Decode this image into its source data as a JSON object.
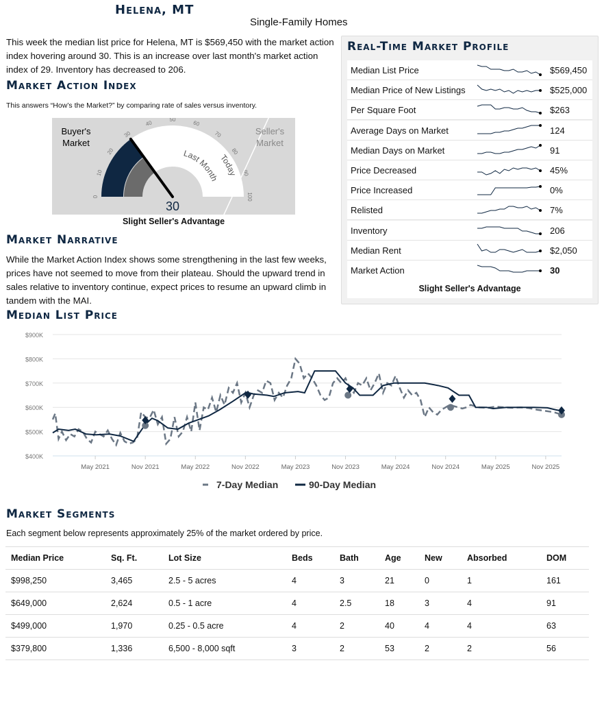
{
  "header": {
    "title": "Helena, MT",
    "subtitle": "Single-Family Homes"
  },
  "intro": "This week the median list price for Helena, MT is $569,450 with the market action index hovering around 30. This is an increase over last month's market action index of 29. Inventory has decreased to 206.",
  "mai": {
    "heading": "Market Action Index",
    "description": "This answers “How’s the Market?” by comparing rate of sales versus inventory.",
    "value": 30,
    "value_label": "30",
    "last_month": 29,
    "buyers": "Buyer's Market",
    "sellers": "Seller's Market",
    "last_month_label": "Last Month",
    "today_label": "Today",
    "ticks": [
      "0",
      "10",
      "20",
      "30",
      "40",
      "50",
      "60",
      "70",
      "80",
      "90",
      "100"
    ],
    "verdict": "Slight Seller's Advantage"
  },
  "narrative": {
    "heading": "Market Narrative",
    "text": "While the Market Action Index shows some strengthening in the last few weeks, prices have not seemed to move from their plateau. Should the upward trend in sales relative to inventory continue, expect prices to resume an upward climb in tandem with the MAI."
  },
  "profile": {
    "heading": "Real-Time Market Profile",
    "rows": [
      {
        "label": "Median List Price",
        "value": "$569,450",
        "spark": [
          8,
          7,
          7,
          5,
          5,
          5,
          4,
          4,
          5,
          3,
          3,
          4,
          2,
          3,
          1
        ]
      },
      {
        "label": "Median Price of New Listings",
        "value": "$525,000",
        "spark": [
          8,
          5,
          4,
          5,
          4,
          5,
          3,
          4,
          2,
          4,
          3,
          4,
          3,
          4,
          4
        ]
      },
      {
        "label": "Per Square Foot",
        "value": "$263",
        "spark": [
          7,
          8,
          8,
          8,
          5,
          5,
          6,
          6,
          5,
          5,
          6,
          4,
          3,
          3,
          2
        ]
      },
      {
        "label": "Average Days on Market",
        "value": "124",
        "spark": [
          2,
          2,
          2,
          2,
          3,
          3,
          4,
          4,
          5,
          6,
          6,
          7,
          8,
          8,
          8
        ]
      },
      {
        "label": "Median Days on Market",
        "value": "91",
        "spark": [
          2,
          2,
          3,
          3,
          2,
          2,
          3,
          3,
          4,
          5,
          5,
          6,
          7,
          6,
          8
        ]
      },
      {
        "label": "Price Decreased",
        "value": "45%",
        "spark": [
          3,
          3,
          1,
          2,
          4,
          2,
          5,
          4,
          6,
          5,
          6,
          6,
          5,
          6,
          4
        ]
      },
      {
        "label": "Price Increased",
        "value": "0%",
        "spark": [
          1,
          1,
          1,
          1,
          6,
          6,
          6,
          6,
          6,
          6,
          6,
          6,
          6.5,
          6.5,
          7
        ]
      },
      {
        "label": "Relisted",
        "value": "7%",
        "spark": [
          2,
          2,
          3,
          4,
          4,
          5,
          5,
          7,
          7,
          6,
          6,
          7,
          5,
          6,
          4
        ]
      },
      {
        "label": "Inventory",
        "value": "206",
        "spark": [
          6,
          6,
          7,
          7,
          7,
          7,
          6,
          6,
          6,
          6,
          4,
          4,
          3,
          2,
          2
        ]
      },
      {
        "label": "Median Rent",
        "value": "$2,050",
        "spark": [
          9,
          4,
          5,
          3,
          3,
          5,
          5,
          4,
          3,
          4,
          5,
          3,
          3,
          3,
          4
        ]
      },
      {
        "label": "Market Action",
        "value": "30",
        "bold": true,
        "spark": [
          8,
          7,
          7,
          7,
          6,
          4,
          4,
          4,
          3,
          3,
          3,
          4,
          4,
          4,
          4
        ]
      }
    ],
    "footer": "Slight Seller's Advantage"
  },
  "chart_title": "Median List Price",
  "chart_data": {
    "type": "line",
    "title": "Median List Price",
    "x_unit": "month index (0 = Jan 2021)",
    "ylabel": "",
    "xlabel": "",
    "ylim": [
      400,
      900
    ],
    "y_ticks": [
      {
        "v": 400,
        "label": "$400K"
      },
      {
        "v": 500,
        "label": "$500K"
      },
      {
        "v": 600,
        "label": "$600K"
      },
      {
        "v": 700,
        "label": "$700K"
      },
      {
        "v": 800,
        "label": "$800K"
      },
      {
        "v": 900,
        "label": "$900K"
      }
    ],
    "x_ticks": [
      {
        "t": 4,
        "label": "May 2021"
      },
      {
        "t": 10,
        "label": "Nov 2021"
      },
      {
        "t": 16,
        "label": "May 2022"
      },
      {
        "t": 22,
        "label": "Nov 2022"
      },
      {
        "t": 28,
        "label": "May 2023"
      },
      {
        "t": 34,
        "label": "Nov 2023"
      },
      {
        "t": 40,
        "label": "May 2024"
      },
      {
        "t": 46,
        "label": "Nov 2024"
      },
      {
        "t": 52,
        "label": "May 2025"
      },
      {
        "t": 58,
        "label": "Nov 2025"
      }
    ],
    "xlim": [
      -1.1,
      59.9
    ],
    "series": [
      {
        "name": "7-Day Median",
        "color": "#6b7785",
        "dashed": true,
        "t": [
          -1.1,
          -0.8,
          -0.4,
          0,
          0.5,
          1,
          1.5,
          2,
          2.5,
          3,
          3.5,
          4,
          4.5,
          5,
          5.5,
          6,
          6.5,
          7,
          7.5,
          8,
          8.5,
          9,
          9.5,
          10,
          10.5,
          11,
          11.5,
          12,
          12.5,
          13,
          13.5,
          14,
          14.5,
          15,
          15.5,
          16,
          16.5,
          17,
          17.5,
          18,
          18.5,
          19,
          19.5,
          20,
          20.5,
          21,
          21.5,
          22,
          22.5,
          23,
          23.5,
          24,
          24.5,
          25,
          25.5,
          26,
          26.5,
          27,
          27.5,
          28,
          28.5,
          29,
          29.5,
          30,
          30.5,
          31,
          31.5,
          32,
          32.5,
          33,
          33.5,
          34,
          34.5,
          35,
          35.5,
          36,
          36.5,
          37,
          37.5,
          38,
          38.5,
          39,
          39.5,
          40,
          40.5,
          41,
          41.5,
          42,
          42.5,
          43,
          43.5,
          44,
          44.5,
          45,
          45.5,
          46,
          46.5,
          47,
          47.5,
          48,
          48.5,
          49,
          50,
          51,
          52,
          53,
          54,
          55,
          56,
          57,
          58,
          59,
          59.9
        ],
        "values": [
          550,
          575,
          470,
          500,
          465,
          490,
          480,
          510,
          500,
          470,
          455,
          500,
          490,
          480,
          505,
          470,
          445,
          495,
          460,
          450,
          455,
          470,
          580,
          560,
          555,
          590,
          530,
          560,
          450,
          470,
          560,
          480,
          500,
          560,
          500,
          620,
          505,
          600,
          590,
          640,
          580,
          650,
          610,
          680,
          660,
          700,
          620,
          660,
          600,
          650,
          670,
          660,
          710,
          700,
          630,
          660,
          640,
          690,
          720,
          800,
          780,
          720,
          740,
          720,
          690,
          650,
          630,
          640,
          700,
          720,
          700,
          720,
          680,
          660,
          700,
          690,
          720,
          670,
          700,
          740,
          660,
          700,
          690,
          730,
          680,
          640,
          670,
          650,
          660,
          630,
          560,
          600,
          580,
          570,
          590,
          600,
          610,
          605,
          600,
          595,
          600,
          610,
          600,
          598,
          603,
          600,
          598,
          600,
          597,
          590,
          585,
          580,
          570
        ]
      },
      {
        "name": "90-Day Median",
        "color": "#0f2742",
        "dashed": false,
        "t": [
          -1.1,
          -0.4,
          0.8,
          1.6,
          2.9,
          4.1,
          5.7,
          7.0,
          8.6,
          10,
          10.8,
          11.5,
          12.7,
          13.9,
          15.2,
          16.4,
          17.6,
          18.9,
          20.5,
          22.1,
          23.0,
          24.6,
          25.4,
          26.7,
          28.3,
          29.1,
          30.3,
          32.8,
          34.0,
          34.9,
          35.7,
          37.3,
          38.5,
          39.8,
          43.5,
          45.1,
          46.3,
          47.6,
          48.8,
          49.6,
          50.9,
          51.7,
          53.3,
          56.6,
          58.2,
          59.2,
          59.9
        ],
        "values": [
          495,
          510,
          505,
          510,
          490,
          487,
          490,
          482,
          460,
          530,
          555,
          545,
          515,
          510,
          535,
          550,
          565,
          590,
          625,
          662,
          655,
          650,
          645,
          660,
          665,
          660,
          750,
          750,
          700,
          680,
          650,
          650,
          690,
          700,
          700,
          690,
          680,
          650,
          650,
          600,
          600,
          595,
          600,
          600,
          598,
          590,
          585
        ]
      }
    ],
    "markers": {
      "diamonds": [
        {
          "t": 10,
          "v": 547
        },
        {
          "t": 22.3,
          "v": 652
        },
        {
          "t": 34.5,
          "v": 676
        },
        {
          "t": 46.8,
          "v": 635
        },
        {
          "t": 59.9,
          "v": 587
        }
      ],
      "circles": [
        {
          "t": 10,
          "v": 525
        },
        {
          "t": 34.3,
          "v": 650
        },
        {
          "t": 46.6,
          "v": 600
        },
        {
          "t": 59.9,
          "v": 570
        }
      ]
    },
    "legend": [
      "7-Day Median",
      "90-Day Median"
    ],
    "legend_position": "bottom"
  },
  "segments": {
    "heading": "Market Segments",
    "description": "Each segment below represents approximately 25% of the market ordered by price.",
    "columns": [
      "Median Price",
      "Sq. Ft.",
      "Lot Size",
      "Beds",
      "Bath",
      "Age",
      "New",
      "Absorbed",
      "DOM"
    ],
    "rows": [
      [
        "$998,250",
        "3,465",
        "2.5 - 5 acres",
        "4",
        "3",
        "21",
        "0",
        "1",
        "161"
      ],
      [
        "$649,000",
        "2,624",
        "0.5 - 1 acre",
        "4",
        "2.5",
        "18",
        "3",
        "4",
        "91"
      ],
      [
        "$499,000",
        "1,970",
        "0.25 - 0.5 acre",
        "4",
        "2",
        "40",
        "4",
        "4",
        "63"
      ],
      [
        "$379,800",
        "1,336",
        "6,500 - 8,000 sqft",
        "3",
        "2",
        "53",
        "2",
        "2",
        "56"
      ]
    ]
  }
}
